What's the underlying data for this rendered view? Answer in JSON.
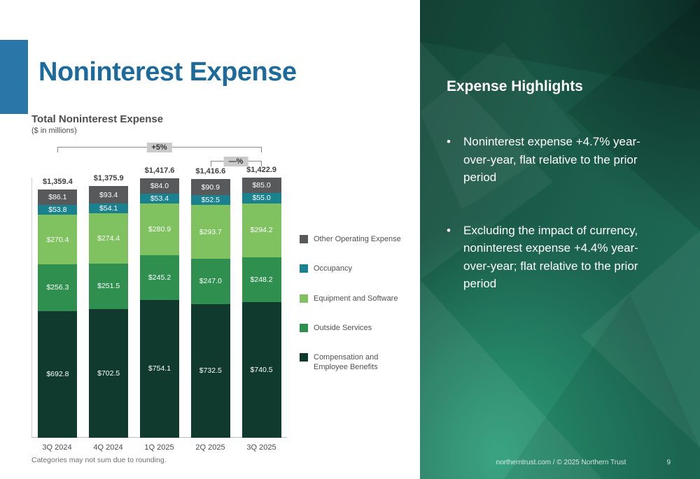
{
  "slide": {
    "title": "Noninterest Expense",
    "footnote": "Categories may not sum due to rounding.",
    "footer": "northerntrust.com / © 2025 Northern Trust",
    "page_number": "9",
    "accent_color": "#2a76a8",
    "title_color": "#1d6b9c"
  },
  "chart_data": {
    "type": "bar",
    "stacked": true,
    "title": "Total Noninterest Expense",
    "subtitle": "($ in millions)",
    "categories": [
      "3Q 2024",
      "4Q 2024",
      "1Q 2025",
      "2Q 2025",
      "3Q 2025"
    ],
    "totals": [
      1359.4,
      1375.9,
      1417.6,
      1416.6,
      1422.9
    ],
    "total_labels": [
      "$1,359.4",
      "$1,375.9",
      "$1,417.6",
      "$1,416.6",
      "$1,422.9"
    ],
    "value_prefix": "$",
    "series_order": "bottom-to-top",
    "series": [
      {
        "name": "Compensation and Employee Benefits",
        "color": "#0f3a2d",
        "values": [
          692.8,
          702.5,
          754.1,
          732.5,
          740.5
        ]
      },
      {
        "name": "Outside Services",
        "color": "#2e8f4e",
        "values": [
          256.3,
          251.5,
          245.2,
          247.0,
          248.2
        ]
      },
      {
        "name": "Equipment and Software",
        "color": "#7fc25f",
        "values": [
          270.4,
          274.4,
          280.9,
          293.7,
          294.2
        ]
      },
      {
        "name": "Occupancy",
        "color": "#1a818f",
        "values": [
          53.8,
          54.1,
          53.4,
          52.5,
          55.0
        ]
      },
      {
        "name": "Other Operating Expense",
        "color": "#58595b",
        "values": [
          86.1,
          93.4,
          84.0,
          90.9,
          85.0
        ]
      }
    ],
    "annotations": [
      {
        "label": "+5%",
        "from": 0,
        "to": 4
      },
      {
        "label": "—%",
        "from": 3,
        "to": 4
      }
    ],
    "legend_position": "right",
    "grid": false
  },
  "highlights": {
    "title": "Expense Highlights",
    "bullet_char": "•",
    "bullets": [
      "Noninterest expense +4.7% year-over-year, flat relative to the prior period",
      "Excluding the impact of currency, noninterest expense +4.4% year-over-year; flat relative to the prior period"
    ]
  }
}
